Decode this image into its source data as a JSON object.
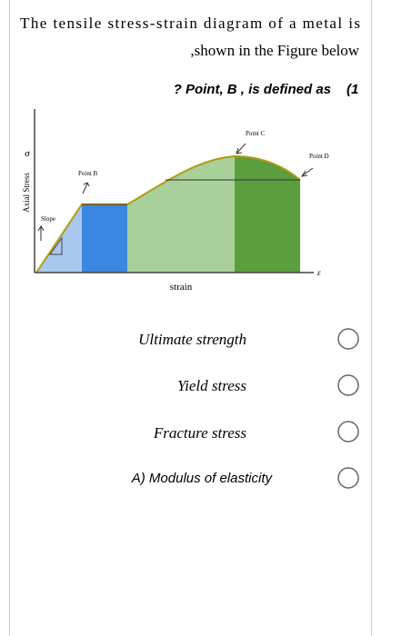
{
  "question": {
    "line1": "The tensile stress-strain diagram of a metal is",
    "line2": ",shown in the Figure below",
    "line3": "? Point, B , is defined as",
    "number": "(1"
  },
  "figure": {
    "y_symbol": "σ",
    "y_label": "Axial Stress",
    "slope": "Slope",
    "point_b": "Point B",
    "point_c": "Point C",
    "point_d": "Point D",
    "x_symbol": "ε",
    "x_label": "strain"
  },
  "options": [
    "Ultimate strength",
    "Yield stress",
    "Fracture stress",
    "A)  Modulus of elasticity"
  ]
}
